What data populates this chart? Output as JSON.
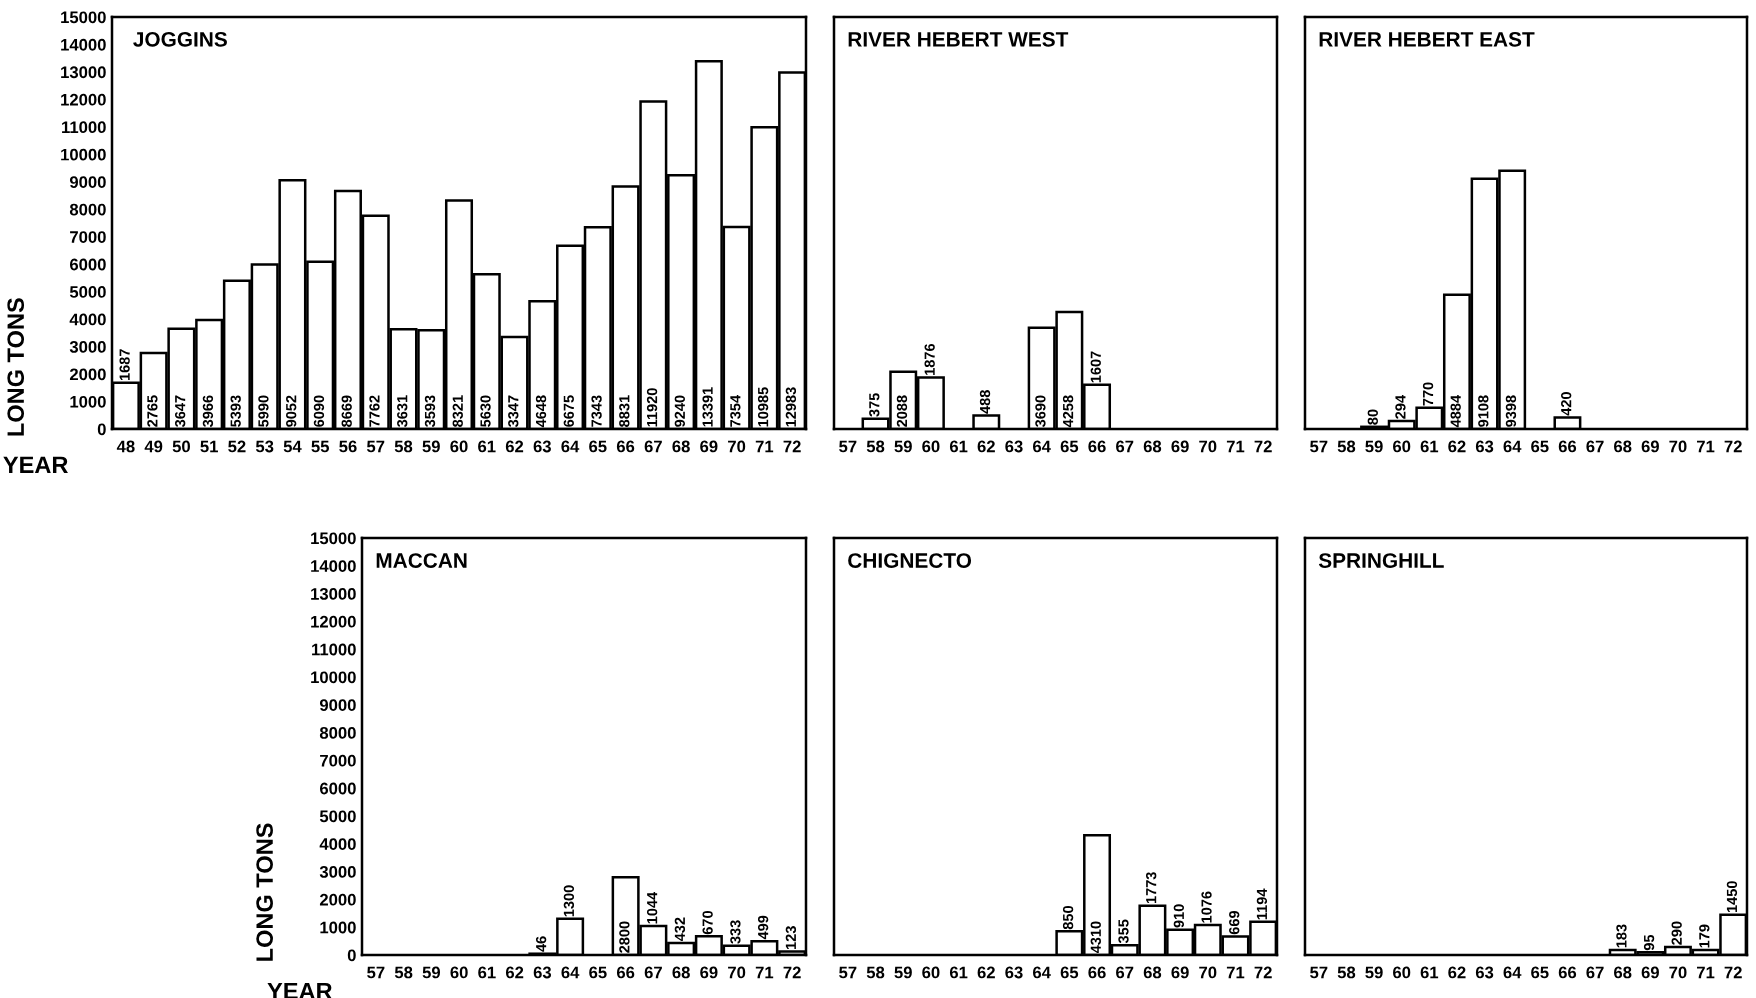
{
  "chart_data": [
    {
      "type": "bar",
      "title": "JOGGINS",
      "xlabel": "YEAR",
      "ylabel": "LONG TONS",
      "categories": [
        "48",
        "49",
        "50",
        "51",
        "52",
        "53",
        "54",
        "55",
        "56",
        "57",
        "58",
        "59",
        "60",
        "61",
        "62",
        "63",
        "64",
        "65",
        "66",
        "67",
        "68",
        "69",
        "70",
        "71",
        "72"
      ],
      "values": [
        1687,
        2765,
        3647,
        3966,
        5393,
        5990,
        9052,
        6090,
        8669,
        7762,
        3631,
        3593,
        8321,
        5630,
        3347,
        4648,
        6675,
        7343,
        8831,
        11920,
        9240,
        13391,
        7354,
        10985,
        12983
      ],
      "color": "#ffffff",
      "ylim": [
        0,
        15000
      ],
      "yticks": [
        0,
        1000,
        2000,
        3000,
        4000,
        5000,
        6000,
        7000,
        8000,
        9000,
        10000,
        11000,
        12000,
        13000,
        14000,
        15000
      ],
      "data_labels": true
    },
    {
      "type": "bar",
      "title": "RIVER HEBERT WEST",
      "categories": [
        "57",
        "58",
        "59",
        "60",
        "61",
        "62",
        "63",
        "64",
        "65",
        "66",
        "67",
        "68",
        "69",
        "70",
        "71",
        "72"
      ],
      "values": [
        null,
        375,
        2088,
        1876,
        null,
        488,
        null,
        3690,
        4258,
        1607,
        null,
        null,
        null,
        null,
        null,
        null
      ],
      "color": "#ffffff",
      "ylim": [
        0,
        15000
      ],
      "data_labels": true,
      "tick_labels": "x"
    },
    {
      "type": "bar",
      "title": "RIVER HEBERT EAST",
      "categories": [
        "57",
        "58",
        "59",
        "60",
        "61",
        "62",
        "63",
        "64",
        "65",
        "66",
        "67",
        "68",
        "69",
        "70",
        "71",
        "72"
      ],
      "values": [
        null,
        null,
        80,
        294,
        770,
        4884,
        9108,
        9398,
        null,
        420,
        null,
        null,
        null,
        null,
        null,
        null
      ],
      "color": "#ffffff",
      "ylim": [
        0,
        15000
      ],
      "data_labels": true,
      "tick_labels": "x"
    },
    {
      "type": "bar",
      "title": "MACCAN",
      "xlabel": "YEAR",
      "ylabel": "LONG TONS",
      "categories": [
        "57",
        "58",
        "59",
        "60",
        "61",
        "62",
        "63",
        "64",
        "65",
        "66",
        "67",
        "68",
        "69",
        "70",
        "71",
        "72"
      ],
      "values": [
        null,
        null,
        null,
        null,
        null,
        null,
        46,
        1300,
        null,
        2800,
        1044,
        432,
        670,
        333,
        499,
        123
      ],
      "color": "#ffffff",
      "ylim": [
        0,
        15000
      ],
      "yticks": [
        0,
        1000,
        2000,
        3000,
        4000,
        5000,
        6000,
        7000,
        8000,
        9000,
        10000,
        11000,
        12000,
        13000,
        14000,
        15000
      ],
      "data_labels": true
    },
    {
      "type": "bar",
      "title": "CHIGNECTO",
      "categories": [
        "57",
        "58",
        "59",
        "60",
        "61",
        "62",
        "63",
        "64",
        "65",
        "66",
        "67",
        "68",
        "69",
        "70",
        "71",
        "72"
      ],
      "values": [
        null,
        null,
        null,
        null,
        null,
        null,
        null,
        null,
        850,
        4310,
        355,
        1773,
        910,
        1076,
        669,
        1194
      ],
      "color": "#ffffff",
      "ylim": [
        0,
        15000
      ],
      "data_labels": true,
      "tick_labels": "x"
    },
    {
      "type": "bar",
      "title": "SPRINGHILL",
      "categories": [
        "57",
        "58",
        "59",
        "60",
        "61",
        "62",
        "63",
        "64",
        "65",
        "66",
        "67",
        "68",
        "69",
        "70",
        "71",
        "72"
      ],
      "values": [
        null,
        null,
        null,
        null,
        null,
        null,
        null,
        null,
        null,
        null,
        null,
        183,
        95,
        290,
        179,
        1450
      ],
      "color": "#ffffff",
      "ylim": [
        0,
        15000
      ],
      "data_labels": true,
      "tick_labels": "x"
    }
  ]
}
